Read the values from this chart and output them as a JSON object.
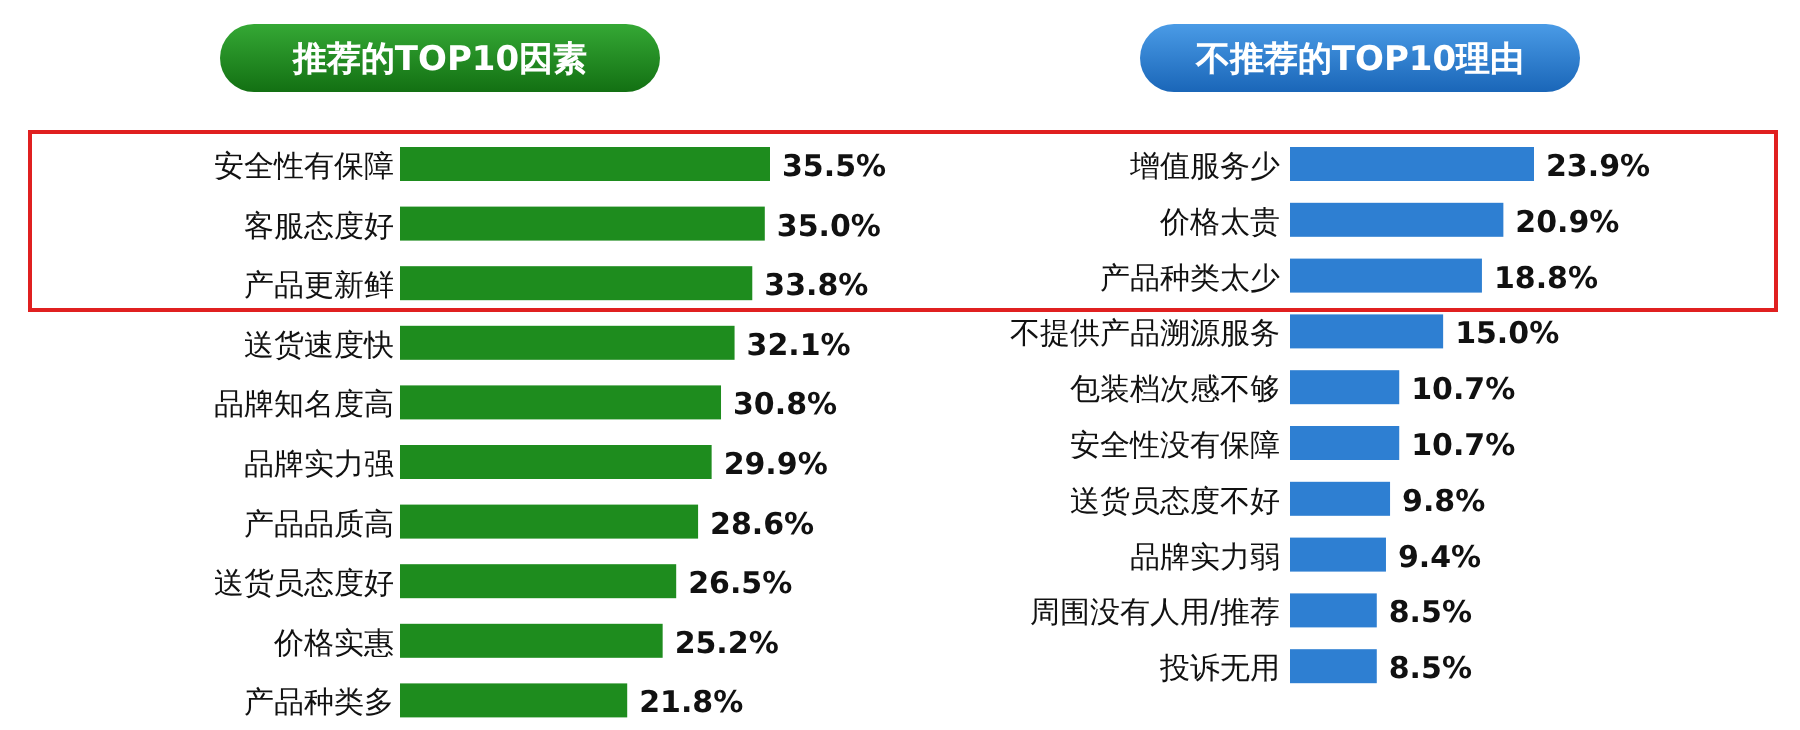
{
  "chart_data": [
    {
      "type": "bar",
      "orientation": "horizontal",
      "title": "推荐的TOP10因素",
      "color": "#1e8c1e",
      "categories": [
        "安全性有保障",
        "客服态度好",
        "产品更新鲜",
        "送货速度快",
        "品牌知名度高",
        "品牌实力强",
        "产品品质高",
        "送货员态度好",
        "价格实惠",
        "产品种类多"
      ],
      "values": [
        35.5,
        35.0,
        33.8,
        32.1,
        30.8,
        29.9,
        28.6,
        26.5,
        25.2,
        21.8
      ],
      "value_labels": [
        "35.5%",
        "35.0%",
        "33.8%",
        "32.1%",
        "30.8%",
        "29.9%",
        "28.6%",
        "26.5%",
        "25.2%",
        "21.8%"
      ]
    },
    {
      "type": "bar",
      "orientation": "horizontal",
      "title": "不推荐的TOP10理由",
      "color": "#2e7fd2",
      "categories": [
        "增值服务少",
        "价格太贵",
        "产品种类太少",
        "不提供产品溯源服务",
        "包装档次感不够",
        "安全性没有保障",
        "送货员态度不好",
        "品牌实力弱",
        "周围没有人用/推荐",
        "投诉无用"
      ],
      "values": [
        23.9,
        20.9,
        18.8,
        15.0,
        10.7,
        10.7,
        9.8,
        9.4,
        8.5,
        8.5
      ],
      "value_labels": [
        "23.9%",
        "20.9%",
        "18.8%",
        "15.0%",
        "10.7%",
        "10.7%",
        "9.8%",
        "9.4%",
        "8.5%",
        "8.5%"
      ]
    }
  ]
}
